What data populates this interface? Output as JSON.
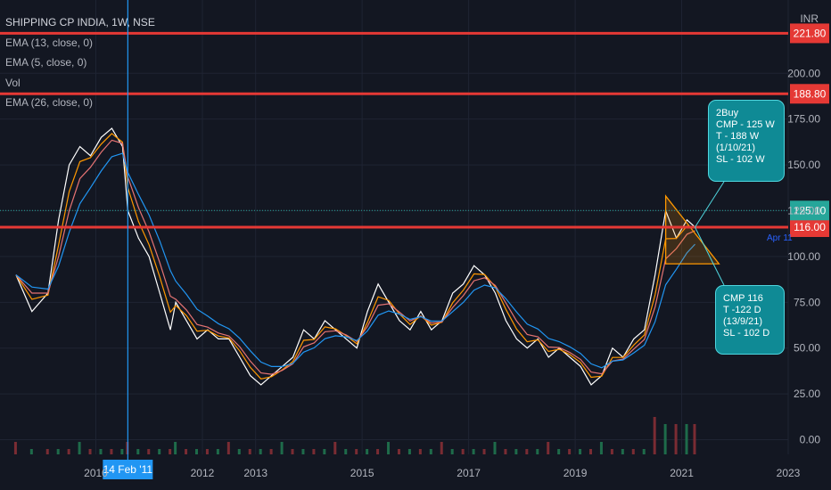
{
  "chart_data": {
    "type": "line",
    "symbol": "SHIPPING CP INDIA, 1W, NSE",
    "currency": "INR",
    "indicators": [
      "EMA (13, close, 0)",
      "EMA (5, close, 0)",
      "Vol",
      "EMA (26, close, 0)"
    ],
    "x_ticks": [
      "2010",
      "2012",
      "2013",
      "2015",
      "2017",
      "2019",
      "2021",
      "2023"
    ],
    "y_ticks": [
      "200.00",
      "175.00",
      "150.00",
      "125.00",
      "100.00",
      "75.00",
      "50.00",
      "25.00",
      "0.00"
    ],
    "ylim": [
      -8,
      240
    ],
    "crosshair_date_label": "14 Feb '11",
    "horizontal_levels": [
      {
        "label": "221.80",
        "value": 221.8,
        "color": "#e53935"
      },
      {
        "label": "188.80",
        "value": 188.8,
        "color": "#e53935"
      },
      {
        "label": "116.00",
        "value": 116.0,
        "color": "#e53935"
      }
    ],
    "current_price": {
      "label": "125.10",
      "value": 125.1,
      "color": "#26a69a"
    },
    "apr_label": "Apr 11",
    "price_series": {
      "name": "Close",
      "x": [
        2009.0,
        2009.3,
        2009.6,
        2009.8,
        2010.0,
        2010.2,
        2010.4,
        2010.6,
        2010.8,
        2011.0,
        2011.1,
        2011.3,
        2011.5,
        2011.7,
        2011.9,
        2012.0,
        2012.2,
        2012.4,
        2012.6,
        2012.8,
        2013.0,
        2013.2,
        2013.4,
        2013.6,
        2013.8,
        2014.0,
        2014.2,
        2014.4,
        2014.6,
        2014.8,
        2015.0,
        2015.2,
        2015.4,
        2015.6,
        2015.8,
        2016.0,
        2016.2,
        2016.4,
        2016.6,
        2016.8,
        2017.0,
        2017.2,
        2017.4,
        2017.6,
        2017.8,
        2018.0,
        2018.2,
        2018.4,
        2018.6,
        2018.8,
        2019.0,
        2019.2,
        2019.4,
        2019.6,
        2019.8,
        2020.0,
        2020.2,
        2020.4,
        2020.6,
        2020.8,
        2021.0,
        2021.2,
        2021.4,
        2021.6,
        2021.75
      ],
      "y": [
        90,
        70,
        80,
        120,
        150,
        160,
        155,
        165,
        170,
        160,
        125,
        110,
        100,
        80,
        60,
        75,
        65,
        55,
        60,
        55,
        55,
        45,
        35,
        30,
        35,
        40,
        45,
        60,
        55,
        65,
        60,
        55,
        50,
        70,
        85,
        75,
        65,
        60,
        70,
        60,
        65,
        80,
        85,
        95,
        90,
        80,
        65,
        55,
        50,
        55,
        45,
        50,
        45,
        40,
        30,
        35,
        50,
        45,
        55,
        60,
        90,
        125,
        110,
        120,
        116
      ]
    },
    "ema_series": [
      {
        "name": "EMA (5, close, 0)",
        "color": "#ff9800"
      },
      {
        "name": "EMA (13, close, 0)",
        "color": "#e57373"
      },
      {
        "name": "EMA (26, close, 0)",
        "color": "#2196f3"
      }
    ],
    "annotations": [
      {
        "lines": [
          "2Buy",
          "CMP - 125 W",
          "T - 188 W (1/10/21)",
          "SL - 102 W"
        ]
      },
      {
        "lines": [
          "CMP 116",
          "T -122 D (13/9/21)",
          "SL - 102 D"
        ]
      }
    ]
  }
}
